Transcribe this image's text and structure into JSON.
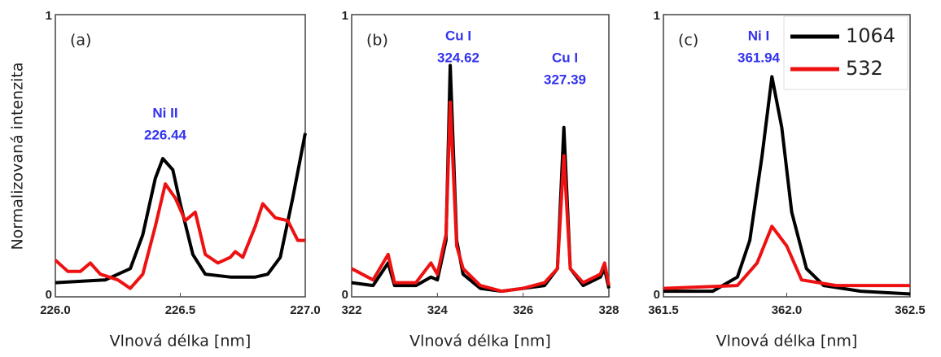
{
  "chart_data": [
    {
      "type": "line",
      "ylabel": "Normalizovaná intenzita",
      "xlabel": "Vlnová délka [nm]",
      "panel_label": "(a)",
      "annotations": [
        [
          "Ni II",
          "226.44"
        ]
      ],
      "xlim": [
        226.0,
        227.0
      ],
      "xticks": [
        {
          "value": 226,
          "label": "226.0"
        },
        226.5,
        {
          "value": 227,
          "label": "227.0"
        }
      ],
      "ylim": [
        0,
        1
      ],
      "yticks": [
        0,
        1
      ],
      "series": [
        {
          "color": "#000000",
          "x": [
            226.0,
            226.2,
            226.3,
            226.35,
            226.4,
            226.43,
            226.47,
            226.5,
            226.55,
            226.6,
            226.7,
            226.8,
            226.85,
            226.9,
            226.95,
            227.0
          ],
          "values": [
            0.05,
            0.06,
            0.1,
            0.22,
            0.42,
            0.49,
            0.45,
            0.33,
            0.15,
            0.08,
            0.07,
            0.07,
            0.08,
            0.14,
            0.35,
            0.58
          ]
        },
        {
          "color": "#ee1111",
          "x": [
            226.0,
            226.05,
            226.1,
            226.14,
            226.18,
            226.25,
            226.3,
            226.35,
            226.4,
            226.44,
            226.48,
            226.52,
            226.56,
            226.6,
            226.65,
            226.7,
            226.72,
            226.75,
            226.8,
            226.83,
            226.88,
            226.93,
            226.97,
            227.0
          ],
          "values": [
            0.13,
            0.09,
            0.09,
            0.12,
            0.08,
            0.06,
            0.03,
            0.08,
            0.25,
            0.4,
            0.35,
            0.27,
            0.3,
            0.15,
            0.12,
            0.14,
            0.16,
            0.14,
            0.25,
            0.33,
            0.28,
            0.27,
            0.2,
            0.2
          ]
        }
      ]
    },
    {
      "type": "line",
      "xlabel": "Vlnová délka [nm]",
      "panel_label": "(b)",
      "annotations": [
        [
          "Cu I",
          "324.62"
        ],
        [
          "Cu I",
          "327.39"
        ]
      ],
      "xlim": [
        322,
        328
      ],
      "xticks": [
        322,
        324,
        326,
        328
      ],
      "ylim": [
        0,
        1
      ],
      "yticks": [
        0,
        1
      ],
      "series": [
        {
          "color": "#000000",
          "x": [
            322,
            322.5,
            322.85,
            323,
            323.5,
            323.85,
            324.0,
            324.2,
            324.3,
            324.45,
            324.6,
            325,
            325.5,
            326,
            326.5,
            326.8,
            326.95,
            327.1,
            327.4,
            327.8,
            327.9,
            328
          ],
          "values": [
            0.05,
            0.04,
            0.12,
            0.04,
            0.04,
            0.07,
            0.06,
            0.2,
            0.82,
            0.2,
            0.08,
            0.03,
            0.02,
            0.03,
            0.04,
            0.1,
            0.6,
            0.1,
            0.04,
            0.07,
            0.1,
            0.03
          ]
        },
        {
          "color": "#ee1111",
          "x": [
            322,
            322.5,
            322.85,
            323,
            323.5,
            323.85,
            324.0,
            324.2,
            324.3,
            324.45,
            324.6,
            325,
            325.5,
            326,
            326.5,
            326.8,
            326.95,
            327.1,
            327.4,
            327.8,
            327.9,
            328
          ],
          "values": [
            0.1,
            0.06,
            0.15,
            0.05,
            0.05,
            0.12,
            0.08,
            0.22,
            0.69,
            0.18,
            0.1,
            0.04,
            0.02,
            0.03,
            0.05,
            0.1,
            0.5,
            0.1,
            0.05,
            0.08,
            0.12,
            0.04
          ]
        }
      ]
    },
    {
      "type": "line",
      "xlabel": "Vlnová délka [nm]",
      "panel_label": "(c)",
      "annotations": [
        [
          "Ni I",
          "361.94"
        ]
      ],
      "xlim": [
        361.5,
        362.5
      ],
      "xticks": [
        361.5,
        {
          "value": 362,
          "label": "362.0"
        },
        362.5
      ],
      "ylim": [
        0,
        1
      ],
      "yticks": [
        0,
        1
      ],
      "legend": "upper right",
      "series": [
        {
          "name": "1064",
          "color": "#000000",
          "x": [
            361.5,
            361.7,
            361.8,
            361.85,
            361.9,
            361.94,
            361.98,
            362.02,
            362.08,
            362.15,
            362.3,
            362.5
          ],
          "values": [
            0.02,
            0.02,
            0.07,
            0.2,
            0.5,
            0.78,
            0.6,
            0.3,
            0.1,
            0.04,
            0.02,
            0.01
          ]
        },
        {
          "name": "532",
          "color": "#ee1111",
          "x": [
            361.5,
            361.8,
            361.88,
            361.94,
            362.0,
            362.06,
            362.2,
            362.5
          ],
          "values": [
            0.03,
            0.04,
            0.12,
            0.25,
            0.18,
            0.06,
            0.04,
            0.04
          ]
        }
      ]
    }
  ]
}
